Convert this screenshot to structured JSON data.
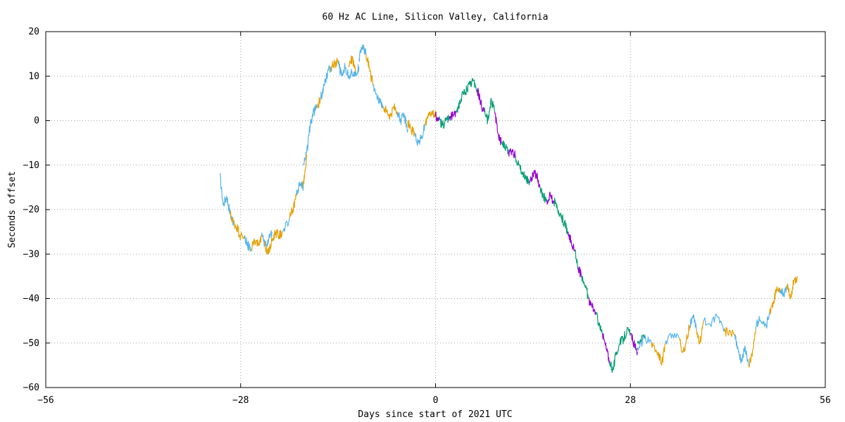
{
  "chart_data": {
    "type": "line",
    "title": "60 Hz AC Line, Silicon Valley, California",
    "xlabel": "Days since start of 2021 UTC",
    "ylabel": "Seconds offset",
    "xlim": [
      -56,
      56
    ],
    "ylim": [
      -60,
      20
    ],
    "xticks": [
      -56,
      -28,
      0,
      28,
      56
    ],
    "yticks": [
      20,
      10,
      0,
      -10,
      -20,
      -30,
      -40,
      -50,
      -60
    ],
    "xtick_labels": [
      "−56",
      "−28",
      "0",
      "28",
      "56"
    ],
    "ytick_labels": [
      "20",
      "10",
      "0",
      "−10",
      "−20",
      "−30",
      "−40",
      "−50",
      "−60"
    ],
    "grid": true,
    "legend": "none",
    "series": [
      {
        "color": "#56b4e9",
        "segments": [
          [
            [
              -31,
              -12
            ],
            [
              -30.5,
              -19
            ],
            [
              -30,
              -17
            ],
            [
              -29.5,
              -21
            ],
            [
              -29,
              -23
            ]
          ],
          [
            [
              -27.5,
              -26
            ],
            [
              -27,
              -28
            ],
            [
              -26.5,
              -29
            ]
          ],
          [
            [
              -25,
              -26
            ],
            [
              -24.5,
              -28
            ],
            [
              -24,
              -27
            ],
            [
              -23.5,
              -25
            ]
          ],
          [
            [
              -22,
              -25
            ],
            [
              -21,
              -22
            ]
          ],
          [
            [
              -20,
              -17
            ],
            [
              -19.5,
              -14
            ],
            [
              -19,
              -15
            ]
          ],
          [
            [
              -19,
              -10
            ],
            [
              -18.5,
              -7
            ],
            [
              -18,
              -1
            ],
            [
              -17.5,
              2
            ],
            [
              -17,
              3
            ]
          ],
          [
            [
              -16.5,
              5
            ],
            [
              -16,
              8
            ],
            [
              -15.5,
              11
            ],
            [
              -15,
              12
            ]
          ],
          [
            [
              -14,
              13
            ],
            [
              -13.5,
              10
            ],
            [
              -13,
              12
            ],
            [
              -12.5,
              10
            ],
            [
              -12,
              11
            ],
            [
              -11.5,
              10
            ],
            [
              -11,
              12
            ]
          ],
          [
            [
              -11,
              14
            ],
            [
              -10.5,
              17
            ],
            [
              -10,
              15
            ]
          ],
          [
            [
              -9,
              8
            ],
            [
              -8.5,
              6
            ],
            [
              -8,
              4
            ],
            [
              -7.5,
              3
            ]
          ],
          [
            [
              -5.5,
              2
            ],
            [
              -5,
              0
            ],
            [
              -4.5,
              1
            ],
            [
              -4,
              -2
            ]
          ],
          [
            [
              -3,
              -3
            ],
            [
              -2.5,
              -5
            ],
            [
              -2,
              -4
            ],
            [
              -1.5,
              -1
            ]
          ],
          [
            [
              29,
              -51
            ],
            [
              30,
              -49
            ],
            [
              31,
              -50
            ]
          ],
          [
            [
              33,
              -50
            ],
            [
              34,
              -48
            ],
            [
              35,
              -49
            ]
          ],
          [
            [
              36.5,
              -46
            ],
            [
              37,
              -44
            ],
            [
              37.5,
              -47
            ]
          ],
          [
            [
              38.5,
              -45
            ],
            [
              39.5,
              -46
            ],
            [
              40.5,
              -44
            ],
            [
              41.5,
              -47
            ]
          ],
          [
            [
              43,
              -48
            ],
            [
              43.5,
              -52
            ],
            [
              44,
              -54
            ],
            [
              44.5,
              -51
            ],
            [
              45,
              -55
            ]
          ],
          [
            [
              46,
              -47
            ],
            [
              46.5,
              -44
            ],
            [
              47.5,
              -46
            ],
            [
              48,
              -43
            ]
          ],
          [
            [
              49.5,
              -38
            ],
            [
              50,
              -39
            ],
            [
              50.5,
              -37
            ]
          ]
        ]
      },
      {
        "color": "#e69f00",
        "segments": [
          [
            [
              -29.5,
              -21
            ],
            [
              -29,
              -23
            ],
            [
              -28.5,
              -24
            ],
            [
              -28,
              -26
            ],
            [
              -27.5,
              -26
            ]
          ],
          [
            [
              -26.5,
              -29
            ],
            [
              -26,
              -27
            ],
            [
              -25.5,
              -28
            ],
            [
              -25,
              -26
            ]
          ],
          [
            [
              -24.5,
              -28
            ],
            [
              -24,
              -30
            ],
            [
              -23.5,
              -27
            ],
            [
              -23,
              -25
            ],
            [
              -22.5,
              -26
            ],
            [
              -22,
              -25
            ]
          ],
          [
            [
              -21,
              -22
            ],
            [
              -20.5,
              -20
            ],
            [
              -20,
              -17
            ]
          ],
          [
            [
              -19,
              -15
            ],
            [
              -18.8,
              -12
            ],
            [
              -18.5,
              -8
            ]
          ],
          [
            [
              -17,
              3
            ],
            [
              -16.5,
              5
            ]
          ],
          [
            [
              -15,
              12
            ],
            [
              -14.5,
              13
            ],
            [
              -14,
              13
            ]
          ],
          [
            [
              -12.5,
              12
            ],
            [
              -12,
              14
            ],
            [
              -11.5,
              11
            ]
          ],
          [
            [
              -10,
              15
            ],
            [
              -9.5,
              12
            ],
            [
              -9,
              8
            ]
          ],
          [
            [
              -7.5,
              3
            ],
            [
              -7,
              2
            ],
            [
              -6.5,
              1
            ],
            [
              -6,
              3
            ],
            [
              -5.5,
              2
            ]
          ],
          [
            [
              -4,
              0
            ],
            [
              -3.5,
              -2
            ],
            [
              -3,
              -3
            ]
          ],
          [
            [
              -1.5,
              -1
            ],
            [
              -1,
              1
            ],
            [
              -0.5,
              2
            ],
            [
              0,
              1
            ]
          ],
          [
            [
              31,
              -50
            ],
            [
              32,
              -52
            ],
            [
              32.5,
              -55
            ],
            [
              33,
              -50
            ]
          ],
          [
            [
              35,
              -49
            ],
            [
              35.5,
              -52
            ],
            [
              36,
              -50
            ],
            [
              36.5,
              -46
            ]
          ],
          [
            [
              37.5,
              -47
            ],
            [
              38,
              -50
            ],
            [
              38.5,
              -45
            ]
          ],
          [
            [
              41.5,
              -47
            ],
            [
              42,
              -48
            ],
            [
              43,
              -48
            ]
          ],
          [
            [
              45,
              -55
            ],
            [
              45.5,
              -53
            ],
            [
              46,
              -47
            ]
          ],
          [
            [
              48,
              -43
            ],
            [
              48.5,
              -41
            ],
            [
              49,
              -38
            ],
            [
              49.5,
              -38
            ]
          ],
          [
            [
              50.5,
              -37
            ],
            [
              51,
              -40
            ],
            [
              51.5,
              -36
            ],
            [
              52,
              -35
            ]
          ]
        ]
      },
      {
        "color": "#009e73",
        "segments": [
          [
            [
              0.5,
              0
            ],
            [
              1,
              -1
            ],
            [
              1.5,
              0
            ],
            [
              2,
              1
            ]
          ],
          [
            [
              3,
              2
            ],
            [
              3.5,
              4
            ],
            [
              4,
              6
            ],
            [
              4.5,
              7
            ],
            [
              5,
              8
            ],
            [
              5.5,
              9
            ],
            [
              6,
              7
            ]
          ],
          [
            [
              7,
              2
            ],
            [
              7.5,
              0
            ],
            [
              8,
              5
            ],
            [
              8.5,
              2
            ]
          ],
          [
            [
              9.5,
              -5
            ],
            [
              10,
              -6
            ],
            [
              10.5,
              -7
            ]
          ],
          [
            [
              11.5,
              -8
            ],
            [
              12,
              -10
            ],
            [
              12.5,
              -12
            ],
            [
              13,
              -13
            ],
            [
              13.5,
              -14
            ]
          ],
          [
            [
              15,
              -15
            ],
            [
              15.5,
              -17
            ],
            [
              16,
              -18
            ]
          ],
          [
            [
              17,
              -18
            ],
            [
              17.5,
              -20
            ],
            [
              18,
              -21
            ],
            [
              18.5,
              -23
            ],
            [
              19,
              -25
            ]
          ],
          [
            [
              20,
              -29
            ],
            [
              20.5,
              -33
            ]
          ],
          [
            [
              21,
              -35
            ],
            [
              21.5,
              -37
            ],
            [
              22,
              -40
            ]
          ],
          [
            [
              23,
              -43
            ],
            [
              23.5,
              -46
            ],
            [
              24,
              -48
            ]
          ],
          [
            [
              25,
              -54
            ],
            [
              25.5,
              -56
            ],
            [
              26,
              -52
            ],
            [
              26.5,
              -50
            ],
            [
              27,
              -49
            ],
            [
              27.5,
              -47
            ],
            [
              28,
              -48
            ]
          ],
          [
            [
              29,
              -50
            ],
            [
              30,
              -49
            ]
          ]
        ]
      },
      {
        "color": "#9400d3",
        "segments": [
          [
            [
              0,
              1
            ],
            [
              0.5,
              0
            ]
          ],
          [
            [
              2,
              1
            ],
            [
              2.5,
              1
            ],
            [
              3,
              2
            ]
          ],
          [
            [
              6,
              7
            ],
            [
              6.5,
              4
            ],
            [
              7,
              2
            ]
          ],
          [
            [
              8.5,
              2
            ],
            [
              9,
              -3
            ],
            [
              9.5,
              -5
            ]
          ],
          [
            [
              10.5,
              -7
            ],
            [
              11,
              -7
            ],
            [
              11.5,
              -8
            ]
          ],
          [
            [
              13.5,
              -14
            ],
            [
              14,
              -12
            ],
            [
              14.5,
              -12
            ],
            [
              15,
              -15
            ]
          ],
          [
            [
              16,
              -18
            ],
            [
              16.5,
              -17
            ],
            [
              17,
              -18
            ]
          ],
          [
            [
              19,
              -25
            ],
            [
              19.5,
              -27
            ],
            [
              20,
              -29
            ]
          ],
          [
            [
              20.5,
              -33
            ],
            [
              21,
              -35
            ]
          ],
          [
            [
              22,
              -40
            ],
            [
              22.5,
              -42
            ],
            [
              23,
              -43
            ]
          ],
          [
            [
              24,
              -48
            ],
            [
              24.5,
              -51
            ],
            [
              25,
              -54
            ]
          ],
          [
            [
              28,
              -48
            ],
            [
              28.5,
              -50
            ],
            [
              29,
              -52
            ]
          ]
        ]
      }
    ]
  }
}
